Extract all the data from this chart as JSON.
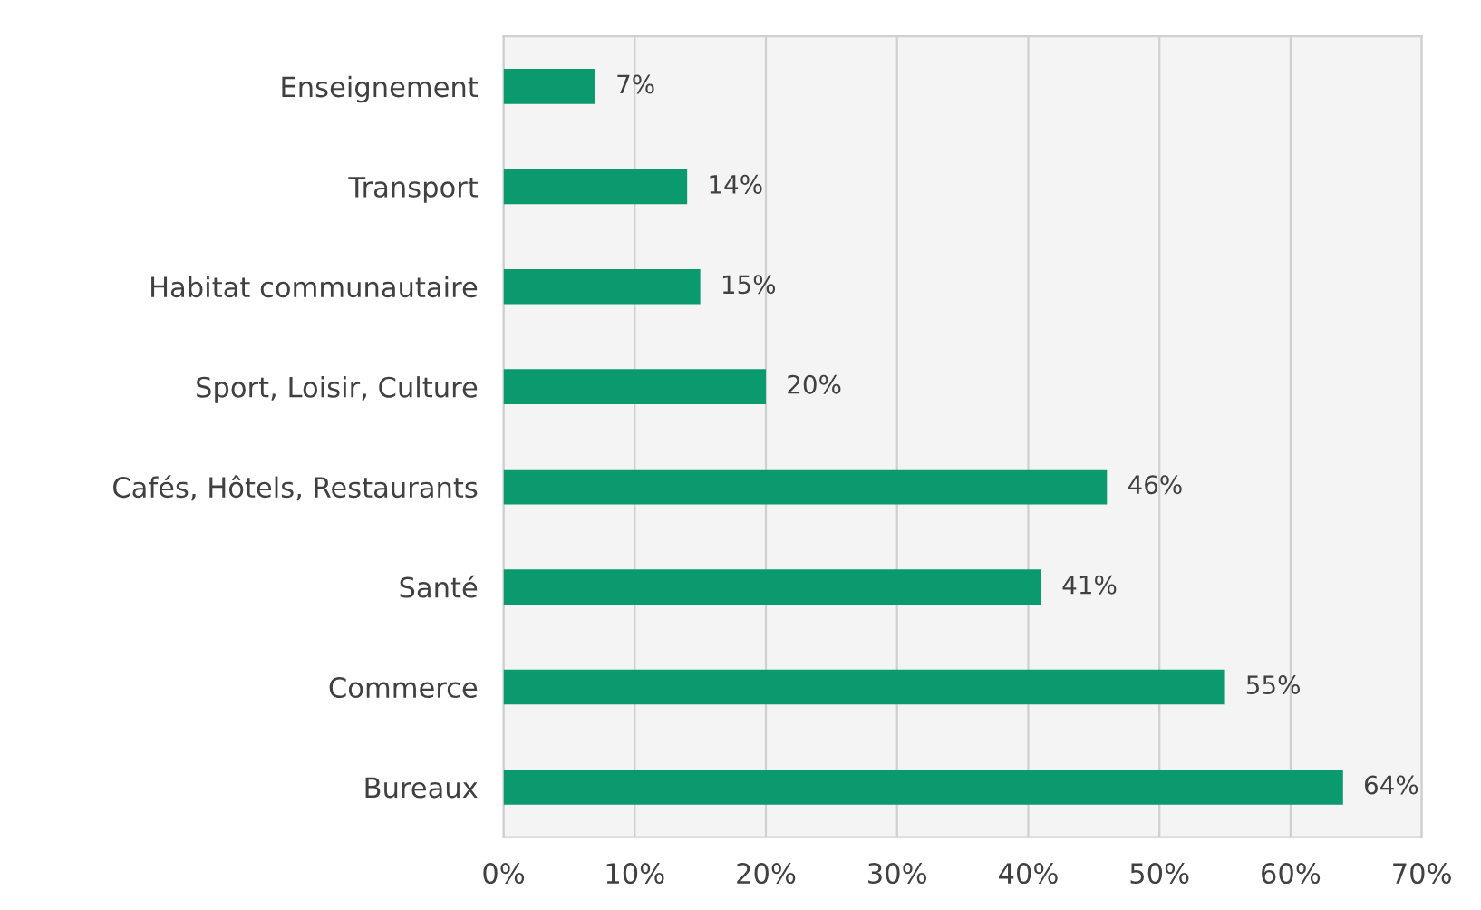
{
  "chart_data": {
    "type": "bar",
    "orientation": "horizontal",
    "categories": [
      "Enseignement",
      "Transport",
      "Habitat communautaire",
      "Sport, Loisir, Culture",
      "Cafés, Hôtels, Restaurants",
      "Santé",
      "Commerce",
      "Bureaux"
    ],
    "values": [
      7,
      14,
      15,
      20,
      46,
      41,
      55,
      64
    ],
    "value_labels": [
      "7%",
      "14%",
      "15%",
      "20%",
      "46%",
      "41%",
      "55%",
      "64%"
    ],
    "color": "#0a9a6e",
    "xlim": [
      0,
      70
    ],
    "xticks": [
      {
        "value": 0,
        "label": "0%"
      },
      {
        "value": 10,
        "label": "10%"
      },
      {
        "value": 20,
        "label": "20%"
      },
      {
        "value": 30,
        "label": "30%"
      },
      {
        "value": 40,
        "label": "40%"
      },
      {
        "value": 50,
        "label": "50%"
      },
      {
        "value": 60,
        "label": "60%"
      },
      {
        "value": 70,
        "label": "70%"
      }
    ],
    "grid": "x",
    "legend": false
  }
}
